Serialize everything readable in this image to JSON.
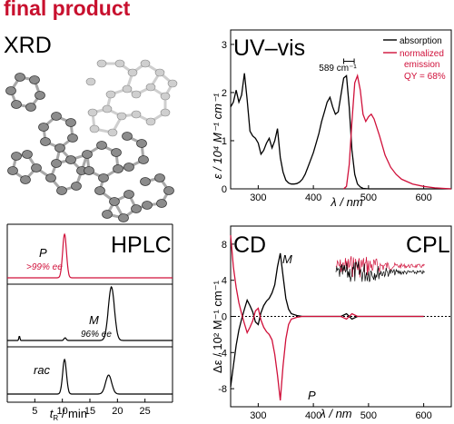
{
  "header": {
    "title": "final product"
  },
  "colors": {
    "red": "#d0103a",
    "black": "#000000",
    "atom": "#8c8c8c",
    "atom_light": "#cfcfcf"
  },
  "panels": {
    "xrd": {
      "label": "XRD",
      "picture": "molecular-crystal-structure-ellipsoid-drawing"
    },
    "uv": {
      "label": "UV–vis",
      "ylabel_html": "ε / 10⁴ M⁻¹ cm⁻¹",
      "xlabel": "λ / nm",
      "legend": {
        "absorption": "absorption",
        "emission1": "normalized",
        "emission2": "emission",
        "qy": "QY = 68%"
      },
      "shift": "589 cm⁻¹"
    },
    "hplc": {
      "label": "HPLC",
      "xlabel": "t",
      "xlabel_sub": "R",
      "xlabel_rest": " / min",
      "trace_labels": {
        "p": "P",
        "p_ee": ">99% ee",
        "m": "M",
        "m_ee": "96% ee",
        "rac": "rac"
      }
    },
    "cd": {
      "label_cd": "CD",
      "label_cpl": "CPL",
      "ylabel": "Δε / 10² M⁻¹ cm⁻¹",
      "xlabel": "λ / nm",
      "m": "M",
      "p": "P"
    }
  },
  "chart_data": [
    {
      "type": "line",
      "title": "UV–vis",
      "xlabel": "λ / nm",
      "ylabel": "ε / 10⁴ M⁻¹ cm⁻¹",
      "xlim": [
        250,
        650
      ],
      "ylim": [
        0,
        3.3
      ],
      "xticks": [
        300,
        400,
        500,
        600
      ],
      "yticks": [
        0,
        1,
        2,
        3
      ],
      "series": [
        {
          "name": "absorption",
          "x": [
            250,
            255,
            260,
            265,
            270,
            275,
            280,
            285,
            290,
            295,
            300,
            305,
            310,
            315,
            320,
            325,
            330,
            335,
            340,
            345,
            350,
            355,
            360,
            365,
            370,
            375,
            380,
            385,
            390,
            395,
            400,
            405,
            410,
            415,
            420,
            425,
            430,
            435,
            440,
            445,
            450,
            455,
            460,
            465,
            470,
            475,
            480,
            485,
            490,
            500,
            520,
            540,
            560,
            580,
            600,
            620,
            650
          ],
          "y": [
            1.7,
            1.8,
            2.05,
            1.8,
            1.95,
            2.4,
            1.85,
            1.2,
            1.1,
            1.05,
            0.95,
            0.72,
            0.8,
            0.95,
            1.05,
            0.85,
            1.0,
            1.25,
            0.65,
            0.35,
            0.18,
            0.12,
            0.1,
            0.1,
            0.11,
            0.14,
            0.2,
            0.3,
            0.45,
            0.6,
            0.75,
            0.95,
            1.15,
            1.4,
            1.6,
            1.8,
            1.9,
            1.7,
            1.55,
            1.6,
            1.95,
            2.3,
            2.35,
            1.7,
            0.8,
            0.3,
            0.1,
            0.04,
            0.01,
            0,
            0,
            0,
            0,
            0,
            0,
            0,
            0
          ]
        },
        {
          "name": "normalized emission",
          "x": [
            455,
            460,
            465,
            470,
            475,
            480,
            485,
            490,
            495,
            500,
            505,
            510,
            520,
            530,
            540,
            550,
            560,
            580,
            600,
            620,
            650
          ],
          "y": [
            0,
            0.05,
            0.5,
            1.4,
            2.2,
            2.35,
            2.05,
            1.55,
            1.4,
            1.5,
            1.55,
            1.45,
            1.1,
            0.7,
            0.45,
            0.3,
            0.2,
            0.1,
            0.05,
            0.02,
            0
          ]
        }
      ],
      "annotation": {
        "text": "589 cm⁻¹",
        "from": 455,
        "to": 474,
        "y": 2.65
      }
    },
    {
      "type": "line",
      "title": "HPLC",
      "xlabel": "t_R / min",
      "xlim": [
        0,
        30
      ],
      "xticks": [
        5,
        10,
        15,
        20,
        25
      ],
      "series": [
        {
          "name": "P",
          "peaks": [
            {
              "t": 10.4,
              "h": 1.0,
              "w": 0.35
            }
          ]
        },
        {
          "name": "M",
          "peaks": [
            {
              "t": 2.2,
              "h": 0.08,
              "w": 0.1
            },
            {
              "t": 10.5,
              "h": 0.05,
              "w": 0.2
            },
            {
              "t": 18.9,
              "h": 1.0,
              "w": 0.55
            }
          ]
        },
        {
          "name": "rac",
          "peaks": [
            {
              "t": 10.4,
              "h": 1.0,
              "w": 0.35
            },
            {
              "t": 18.4,
              "h": 0.55,
              "w": 0.55
            }
          ]
        }
      ]
    },
    {
      "type": "line",
      "title": "CD",
      "xlabel": "λ / nm",
      "ylabel": "Δε / 10² M⁻¹ cm⁻¹",
      "xlim": [
        250,
        650
      ],
      "ylim": [
        -10,
        10
      ],
      "xticks": [
        300,
        400,
        500,
        600
      ],
      "yticks": [
        -8,
        -4,
        0,
        4,
        8
      ],
      "series": [
        {
          "name": "M",
          "x": [
            250,
            255,
            260,
            265,
            270,
            275,
            280,
            285,
            290,
            295,
            300,
            305,
            310,
            315,
            320,
            325,
            330,
            335,
            340,
            345,
            350,
            355,
            360,
            370,
            380,
            400,
            450,
            460,
            470,
            480,
            500,
            550,
            600
          ],
          "y": [
            -7.8,
            -5.5,
            -3.2,
            -1.5,
            -0.3,
            0.8,
            1.8,
            1.2,
            0.5,
            -0.6,
            -0.9,
            0.4,
            1.2,
            1.7,
            2.0,
            2.6,
            3.5,
            5.5,
            7.0,
            4.5,
            2.0,
            0.8,
            0.3,
            0.1,
            0,
            0,
            0,
            0.3,
            -0.3,
            0,
            0,
            0,
            0
          ]
        },
        {
          "name": "P",
          "x": [
            250,
            255,
            260,
            265,
            270,
            275,
            280,
            285,
            290,
            295,
            300,
            305,
            310,
            315,
            320,
            325,
            330,
            335,
            340,
            345,
            350,
            355,
            360,
            370,
            380,
            400,
            450,
            460,
            470,
            480,
            500,
            550,
            600
          ],
          "y": [
            9.0,
            5.5,
            3.2,
            1.5,
            0.3,
            -0.8,
            -1.8,
            -1.2,
            -0.5,
            0.6,
            0.9,
            -0.4,
            -1.2,
            -1.7,
            -2.0,
            -2.6,
            -4.2,
            -6.5,
            -9.3,
            -5.5,
            -2.5,
            -0.9,
            -0.3,
            -0.1,
            0,
            0,
            0,
            -0.3,
            0.3,
            0,
            0,
            0,
            0
          ]
        }
      ]
    }
  ]
}
